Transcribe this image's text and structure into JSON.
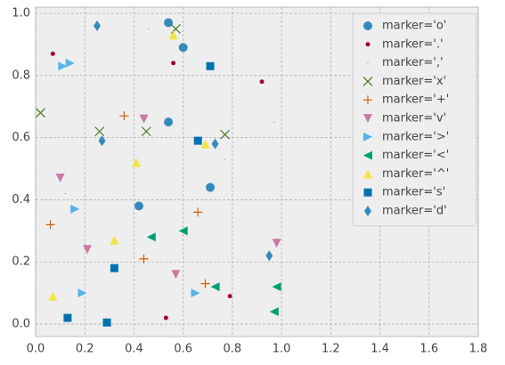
{
  "chart_data": {
    "type": "scatter",
    "grid": true,
    "legend": "upper right",
    "xlim": [
      0,
      1.8
    ],
    "ylim": [
      -0.04,
      1.02
    ],
    "xticks": [
      {
        "value": 0,
        "label": "0.0"
      },
      0.2,
      0.4,
      0.6,
      0.8,
      {
        "value": 1,
        "label": "1.0"
      },
      1.2,
      1.4,
      1.6,
      1.8
    ],
    "yticks": [
      {
        "value": 0,
        "label": "0.0"
      },
      0.2,
      0.4,
      0.6,
      0.8,
      {
        "value": 1,
        "label": "1.0"
      }
    ],
    "series": [
      {
        "name": "marker='o'",
        "marker": "o",
        "color": "#348ABD",
        "x": [
          0.54,
          0.6,
          0.54,
          0.42,
          0.71
        ],
        "values": [
          0.97,
          0.89,
          0.65,
          0.38,
          0.44
        ]
      },
      {
        "name": "marker='.'",
        "marker": ".",
        "color": "#A60628",
        "x": [
          0.07,
          0.56,
          0.92,
          0.79,
          0.53
        ],
        "values": [
          0.87,
          0.84,
          0.78,
          0.09,
          0.02
        ]
      },
      {
        "name": "marker=','",
        "marker": ",",
        "color": "#7A68A6",
        "x": [
          0.46,
          0.12,
          0.77,
          0.97
        ],
        "values": [
          0.95,
          0.42,
          0.53,
          0.65
        ]
      },
      {
        "name": "marker='x'",
        "marker": "x",
        "color": "#467821",
        "x": [
          0.02,
          0.26,
          0.45,
          0.57,
          0.77
        ],
        "values": [
          0.68,
          0.62,
          0.62,
          0.95,
          0.61
        ]
      },
      {
        "name": "marker='+'",
        "marker": "+",
        "color": "#D55E00",
        "x": [
          0.06,
          0.36,
          0.44,
          0.66,
          0.69
        ],
        "values": [
          0.32,
          0.67,
          0.21,
          0.36,
          0.13
        ]
      },
      {
        "name": "marker='v'",
        "marker": "v",
        "color": "#CC79A7",
        "x": [
          0.1,
          0.44,
          0.21,
          0.57,
          0.98
        ],
        "values": [
          0.47,
          0.66,
          0.24,
          0.16,
          0.26
        ]
      },
      {
        "name": "marker='>'",
        "marker": ">",
        "color": "#56B4E9",
        "x": [
          0.11,
          0.14,
          0.16,
          0.19,
          0.65
        ],
        "values": [
          0.83,
          0.84,
          0.37,
          0.1,
          0.1
        ]
      },
      {
        "name": "marker='<'",
        "marker": "<",
        "color": "#009E73",
        "x": [
          0.47,
          0.6,
          0.73,
          0.98,
          0.97
        ],
        "values": [
          0.28,
          0.3,
          0.12,
          0.12,
          0.04
        ]
      },
      {
        "name": "marker='^'",
        "marker": "^",
        "color": "#F0E442",
        "x": [
          0.56,
          0.07,
          0.32,
          0.41,
          0.69
        ],
        "values": [
          0.93,
          0.09,
          0.27,
          0.52,
          0.58
        ]
      },
      {
        "name": "marker='s'",
        "marker": "s",
        "color": "#0072B2",
        "x": [
          0.71,
          0.66,
          0.32,
          0.13,
          0.29
        ],
        "values": [
          0.83,
          0.59,
          0.18,
          0.02,
          0.005
        ]
      },
      {
        "name": "marker='d'",
        "marker": "d",
        "color": "#348ABD",
        "x": [
          0.25,
          0.27,
          0.73,
          0.95
        ],
        "values": [
          0.96,
          0.59,
          0.58,
          0.22
        ]
      }
    ]
  }
}
